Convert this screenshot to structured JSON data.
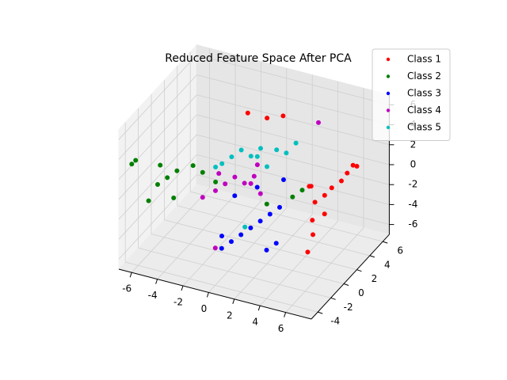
{
  "chart_data": {
    "type": "scatter3d",
    "title": "Reduced Feature Space After PCA",
    "xlim": [
      -7,
      8
    ],
    "ylim": [
      -5,
      7
    ],
    "zlim": [
      -7,
      7
    ],
    "xticks": [
      -6,
      -4,
      -2,
      0,
      2,
      4,
      6
    ],
    "yticks": [
      -4,
      -2,
      0,
      2,
      4,
      6
    ],
    "zticks": [
      -6,
      -4,
      -2,
      0,
      2,
      4,
      6
    ],
    "grid": true,
    "legend": "upper right",
    "series": [
      {
        "name": "Class 1",
        "color": "#ff0000",
        "x": [
          5.5,
          6,
          6.3,
          6.8,
          7,
          7.2,
          5.8,
          6.5,
          4.8,
          5.2,
          7.5,
          6.1,
          -1,
          0.5,
          1.5,
          6.2
        ],
        "y": [
          0.5,
          1,
          1.5,
          2,
          2.5,
          3,
          -0.5,
          0,
          1,
          0.5,
          3,
          -1,
          3,
          3,
          3.5,
          -2
        ],
        "z": [
          0,
          0.5,
          1,
          1.5,
          2,
          2.5,
          -1,
          -0.5,
          1,
          1.5,
          2.5,
          -2,
          5,
          5,
          5.2,
          -3
        ]
      },
      {
        "name": "Class 2",
        "color": "#008000",
        "x": [
          -6,
          -5.5,
          -5,
          -4.5,
          -4,
          -6.2,
          -5.8,
          -3,
          -2.5,
          2,
          3.5,
          -6.5,
          -6.3,
          4
        ],
        "y": [
          -1,
          -0.5,
          0,
          -1.5,
          0.5,
          -2,
          -1,
          0,
          1,
          0,
          1,
          -4,
          -3.8,
          1.5
        ],
        "z": [
          -1,
          -0.5,
          0,
          -1.5,
          0.5,
          -2,
          1,
          0.5,
          -1,
          -1,
          -0.5,
          3,
          3.3,
          0
        ]
      },
      {
        "name": "Class 3",
        "color": "#0000ff",
        "x": [
          0,
          0.5,
          1,
          1.5,
          2,
          2.5,
          3,
          -1,
          -0.5,
          3.5,
          4,
          1,
          2.8
        ],
        "y": [
          -3,
          -2.5,
          -2,
          -1.5,
          -1,
          -0.5,
          0,
          -1,
          0,
          -3,
          -2.5,
          0.5,
          1
        ],
        "z": [
          -4,
          -3.5,
          -3,
          -2.5,
          -2,
          -1.5,
          -1,
          -4.5,
          -1,
          -3,
          -2.5,
          0,
          1
        ]
      },
      {
        "name": "Class 4",
        "color": "#bf00bf",
        "x": [
          -2,
          -1.5,
          -1,
          -0.5,
          0,
          0.5,
          1,
          -2.5,
          -1,
          0,
          4,
          -3
        ],
        "y": [
          0,
          0.5,
          1,
          1.5,
          2,
          0.5,
          1,
          1.5,
          -2,
          2.5,
          4,
          0
        ],
        "z": [
          -1,
          -0.5,
          0,
          -0.8,
          -0.3,
          0.2,
          -1,
          -0.5,
          -5,
          0.5,
          5,
          -2
        ]
      },
      {
        "name": "Class 5",
        "color": "#00bfbf",
        "x": [
          -2,
          -1.5,
          -1,
          -0.5,
          0,
          0.5,
          1,
          1.5,
          2,
          -2.5,
          2.5,
          0.8
        ],
        "y": [
          1,
          1.5,
          2,
          2.5,
          3,
          1.5,
          2,
          2.5,
          3,
          1,
          3.5,
          -1
        ],
        "z": [
          1,
          1.5,
          2,
          1.2,
          1.8,
          2.2,
          1,
          2.5,
          2,
          0.5,
          2.8,
          -3
        ]
      }
    ]
  }
}
